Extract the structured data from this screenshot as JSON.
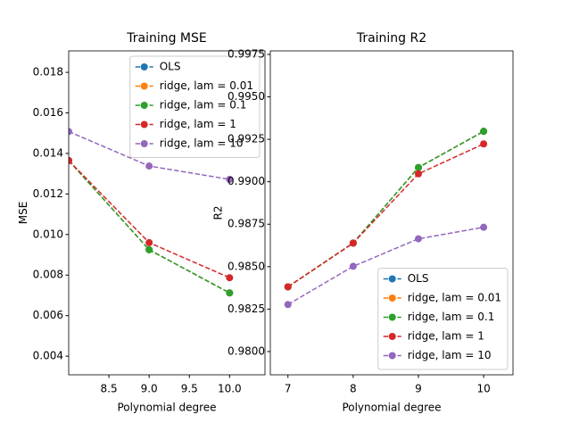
{
  "chart_data": [
    {
      "type": "line",
      "title": "Training MSE",
      "x_label": "Polynomial degree",
      "y_label": "MSE",
      "x": [
        8,
        9,
        10
      ],
      "series": [
        {
          "name": "OLS",
          "color": "#1f77b4",
          "values": [
            0.01365,
            0.00925,
            0.00712
          ]
        },
        {
          "name": "ridge, lam = 0.01",
          "color": "#ff7f0e",
          "values": [
            0.01365,
            0.00925,
            0.00712
          ]
        },
        {
          "name": "ridge, lam = 0.1",
          "color": "#2ca02c",
          "values": [
            0.01365,
            0.00925,
            0.00712
          ]
        },
        {
          "name": "ridge, lam = 1",
          "color": "#d62728",
          "values": [
            0.01365,
            0.0096,
            0.00787
          ]
        },
        {
          "name": "ridge, lam = 10",
          "color": "#9467bd",
          "values": [
            0.01508,
            0.01338,
            0.01272
          ]
        }
      ],
      "xlim": [
        8.0,
        10.44
      ],
      "ylim": [
        0.00308,
        0.01906
      ],
      "xticks": [
        8.5,
        {
          "value": 9,
          "label": "9.0"
        },
        9.5,
        {
          "value": 10,
          "label": "10.0"
        }
      ],
      "yticks": [
        0.004,
        0.006,
        0.008,
        {
          "value": 0.01,
          "label": "0.010"
        },
        0.012,
        0.014,
        0.016,
        0.018
      ],
      "legend": "upper right"
    },
    {
      "type": "line",
      "title": "Training R2",
      "x_label": "Polynomial degree",
      "y_label": "R2",
      "x": [
        7,
        8,
        9,
        10
      ],
      "series": [
        {
          "name": "OLS",
          "color": "#1f77b4",
          "values": [
            0.98381,
            0.98639,
            0.99084,
            0.99297
          ]
        },
        {
          "name": "ridge, lam = 0.01",
          "color": "#ff7f0e",
          "values": [
            0.98381,
            0.98639,
            0.99084,
            0.99297
          ]
        },
        {
          "name": "ridge, lam = 0.1",
          "color": "#2ca02c",
          "values": [
            0.98381,
            0.98639,
            0.99084,
            0.99297
          ]
        },
        {
          "name": "ridge, lam = 1",
          "color": "#d62728",
          "values": [
            0.98381,
            0.98639,
            0.99047,
            0.99223
          ]
        },
        {
          "name": "ridge, lam = 10",
          "color": "#9467bd",
          "values": [
            0.98277,
            0.98502,
            0.98664,
            0.98732
          ]
        }
      ],
      "xlim": [
        6.73,
        10.45
      ],
      "ylim": [
        0.97863,
        0.99771
      ],
      "xticks": [
        7,
        8,
        9,
        10
      ],
      "yticks": [
        {
          "value": 0.98,
          "label": "0.9800"
        },
        0.9825,
        {
          "value": 0.985,
          "label": "0.9850"
        },
        0.9875,
        {
          "value": 0.99,
          "label": "0.9900"
        },
        0.9925,
        {
          "value": 0.995,
          "label": "0.9950"
        },
        0.9975
      ],
      "legend": "lower right"
    }
  ]
}
